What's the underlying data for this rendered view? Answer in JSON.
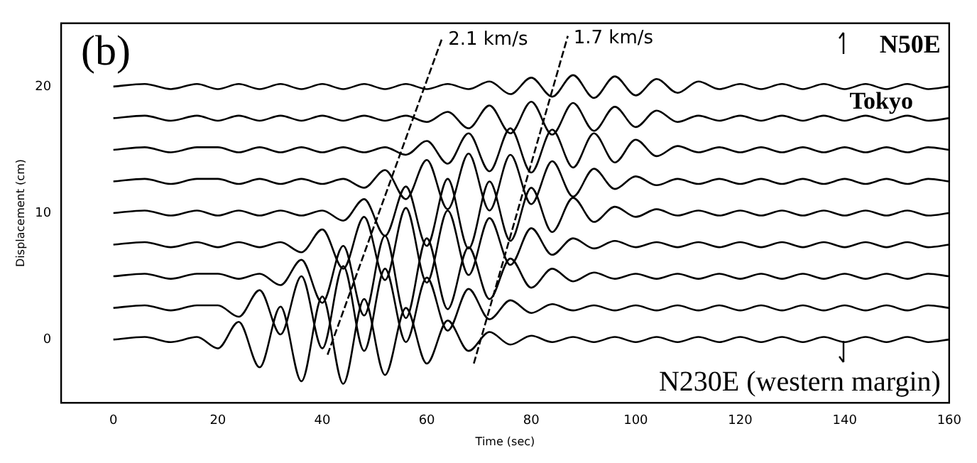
{
  "chart_data": {
    "type": "line",
    "title": "(b)",
    "xlabel": "Time (sec)",
    "ylabel": "Displacement (cm)",
    "xlim": [
      -10,
      160
    ],
    "xticks": [
      0,
      20,
      40,
      60,
      80,
      100,
      120,
      140,
      160
    ],
    "ylim": [
      -5,
      25
    ],
    "yticks": [
      0,
      10,
      20
    ],
    "grid": false,
    "legend": false,
    "marker": "none",
    "line_style": "solid",
    "annotations": [
      "N50E",
      "N230E (western margin)",
      {
        "text": "Tokyo",
        "x": 147,
        "y": 17.5
      }
    ],
    "x": [
      0,
      6,
      11,
      16,
      20,
      24,
      28,
      32,
      36,
      40,
      44,
      48,
      52,
      56,
      60,
      64,
      68,
      72,
      76,
      80,
      84,
      88,
      92,
      96,
      100,
      104,
      108,
      112,
      116,
      120,
      124,
      128,
      132,
      136,
      140,
      144,
      148,
      152,
      156,
      160
    ],
    "series": [
      {
        "color": "#000000",
        "values": [
          0,
          0.2,
          -0.2,
          0.2,
          -0.7,
          1.4,
          -2.2,
          2.6,
          -3.3,
          3.4,
          -3.5,
          3.2,
          -2.8,
          2.5,
          -1.9,
          1.5,
          -0.9,
          0.6,
          -0.4,
          0.3,
          -0.2,
          0.2,
          -0.2,
          0.2,
          -0.2,
          0.2,
          -0.2,
          0.2,
          -0.2,
          0.2,
          -0.2,
          0.2,
          -0.2,
          0.2,
          -0.2,
          0.2,
          -0.2,
          0.2,
          -0.2,
          0
        ]
      },
      {
        "color": "#000000",
        "values": [
          2.5,
          2.7,
          2.3,
          2.7,
          2.7,
          1.8,
          3.9,
          0.4,
          5.0,
          -0.7,
          5.8,
          -0.9,
          5.6,
          -0.2,
          4.9,
          0.7,
          4.0,
          1.6,
          3.1,
          2.1,
          2.8,
          2.3,
          2.7,
          2.3,
          2.7,
          2.3,
          2.7,
          2.3,
          2.7,
          2.3,
          2.7,
          2.3,
          2.7,
          2.3,
          2.7,
          2.3,
          2.7,
          2.3,
          2.7,
          2.5
        ]
      },
      {
        "color": "#000000",
        "values": [
          5,
          5.2,
          4.8,
          5.2,
          5.2,
          4.8,
          5.2,
          4.3,
          6.3,
          2.9,
          7.4,
          1.9,
          8.2,
          1.7,
          8.0,
          2.4,
          7.3,
          3.2,
          6.4,
          4.1,
          5.6,
          4.6,
          5.3,
          4.8,
          5.2,
          4.8,
          5.2,
          4.8,
          5.2,
          4.8,
          5.2,
          4.8,
          5.2,
          4.8,
          5.2,
          4.8,
          5.2,
          4.8,
          5.2,
          5
        ]
      },
      {
        "color": "#000000",
        "values": [
          7.5,
          7.7,
          7.3,
          7.7,
          7.3,
          7.7,
          7.3,
          7.7,
          6.9,
          8.7,
          5.6,
          9.7,
          4.7,
          10.4,
          4.5,
          10.2,
          5.1,
          9.6,
          5.9,
          8.8,
          6.7,
          8.0,
          7.2,
          7.8,
          7.3,
          7.7,
          7.3,
          7.7,
          7.3,
          7.7,
          7.3,
          7.7,
          7.3,
          7.7,
          7.3,
          7.7,
          7.3,
          7.7,
          7.3,
          7.5
        ]
      },
      {
        "color": "#000000",
        "values": [
          10,
          10.2,
          9.8,
          10.2,
          9.8,
          10.2,
          9.8,
          10.2,
          9.8,
          10.2,
          9.4,
          11.1,
          8.2,
          12.1,
          7.4,
          12.7,
          7.2,
          12.5,
          7.8,
          12.0,
          8.5,
          11.2,
          9.3,
          10.5,
          9.7,
          10.3,
          9.8,
          10.2,
          9.8,
          10.2,
          9.8,
          10.2,
          9.8,
          10.2,
          9.8,
          10.2,
          9.8,
          10.2,
          9.8,
          10
        ]
      },
      {
        "color": "#000000",
        "values": [
          12.5,
          12.7,
          12.3,
          12.7,
          12.7,
          12.3,
          12.7,
          12.3,
          12.7,
          12.3,
          12.7,
          12.0,
          13.4,
          11.1,
          14.2,
          10.3,
          14.7,
          10.2,
          14.6,
          10.7,
          14.1,
          11.3,
          13.5,
          11.9,
          12.9,
          12.2,
          12.7,
          12.3,
          12.7,
          12.3,
          12.7,
          12.3,
          12.7,
          12.3,
          12.7,
          12.3,
          12.7,
          12.3,
          12.7,
          12.5
        ]
      },
      {
        "color": "#000000",
        "values": [
          15,
          15.2,
          14.8,
          15.2,
          15.2,
          14.8,
          15.2,
          14.8,
          15.2,
          14.8,
          15.2,
          14.8,
          15.2,
          14.6,
          15.7,
          13.9,
          16.3,
          13.3,
          16.7,
          13.2,
          16.6,
          13.6,
          16.3,
          14.0,
          15.8,
          14.5,
          15.3,
          14.8,
          15.2,
          14.8,
          15.2,
          14.8,
          15.2,
          14.8,
          15.2,
          14.8,
          15.2,
          14.8,
          15.2,
          15
        ]
      },
      {
        "color": "#000000",
        "values": [
          17.5,
          17.7,
          17.3,
          17.7,
          17.3,
          17.7,
          17.3,
          17.7,
          17.3,
          17.7,
          17.3,
          17.7,
          17.3,
          17.7,
          17.2,
          18.0,
          16.7,
          18.5,
          16.3,
          18.8,
          16.2,
          18.7,
          16.5,
          18.4,
          16.8,
          18.1,
          17.2,
          17.7,
          17.3,
          17.7,
          17.3,
          17.7,
          17.3,
          17.7,
          17.3,
          17.7,
          17.3,
          17.7,
          17.3,
          17.5
        ]
      },
      {
        "color": "#000000",
        "values": [
          20,
          20.2,
          19.8,
          20.2,
          19.8,
          20.2,
          19.8,
          20.2,
          19.8,
          20.2,
          19.8,
          20.2,
          19.8,
          20.2,
          19.8,
          20.2,
          19.8,
          20.4,
          19.4,
          20.7,
          19.2,
          20.9,
          19.1,
          20.8,
          19.3,
          20.6,
          19.5,
          20.4,
          19.8,
          20.2,
          19.8,
          20.2,
          19.8,
          20.2,
          19.8,
          20.2,
          19.8,
          20.2,
          19.8,
          20
        ]
      },
      {
        "type": "line",
        "name": "2.1 km/s",
        "color": "#000000",
        "line_style": "dashed",
        "x": [
          41,
          63
        ],
        "values": [
          -1.2,
          23.9
        ]
      },
      {
        "type": "line",
        "name": "1.7 km/s",
        "color": "#000000",
        "line_style": "dashed",
        "x": [
          69,
          87
        ],
        "values": [
          -1.9,
          24
        ]
      }
    ]
  }
}
